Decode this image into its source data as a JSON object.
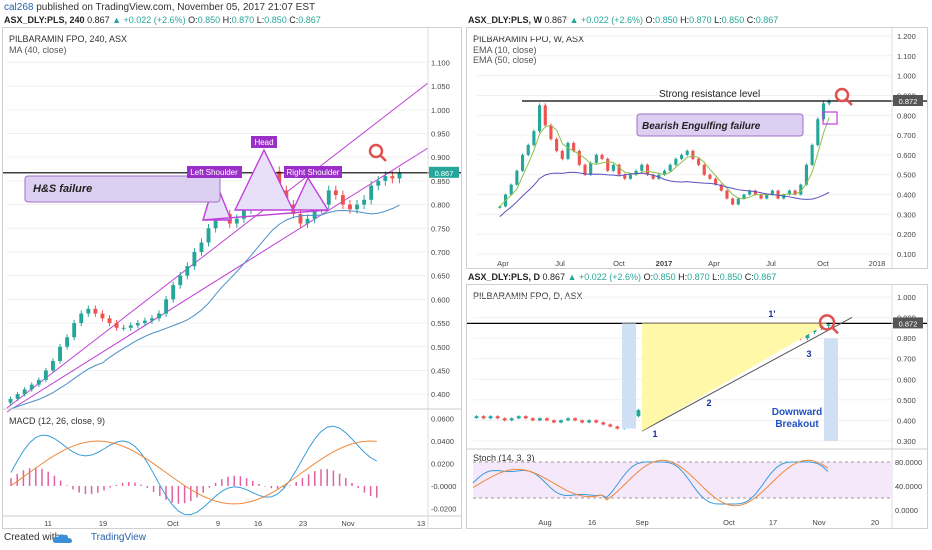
{
  "publisher": {
    "user": "cal268",
    "text": "published on TradingView.com, November 05, 2017 21:07 EST"
  },
  "footer": {
    "created": "Created with",
    "brand": "TradingView"
  },
  "colors": {
    "up": "#26a69a",
    "down": "#ef5350",
    "ma": "#4a90c8",
    "channel": "#c040d8",
    "resistance": "#000000",
    "highlight": "#e8e0f8",
    "red_marker": "#e05050",
    "macd": "#3a9bd8",
    "signal": "#f0883a",
    "hist": "#e060a0"
  },
  "left": {
    "header": {
      "symbol": "ASX_DLY:PLS, 240",
      "price": "0.867",
      "change": "▲ +0.022 (+2.6%)",
      "o_label": "O:",
      "o": "0.850",
      "h_label": "H:",
      "h": "0.870",
      "l_label": "L:",
      "l": "0.850",
      "c_label": "C:",
      "c": "0.867"
    },
    "title": "PILBARAMIN FPO, 240, ASX",
    "indicator": "MA (40, close)",
    "labels": {
      "hs_failure": "H&S failure",
      "left_shoulder": "Left Shoulder",
      "head": "Head",
      "right_shoulder": "Right Shoulder"
    },
    "price_tag": "0.867",
    "macd_title": "MACD (12, 26, close, 9)",
    "chart_data": {
      "type": "candlestick",
      "title": "PILBARAMIN FPO, 240, ASX",
      "yticks": [
        "1.100",
        "1.050",
        "1.000",
        "0.950",
        "0.900",
        "0.850",
        "0.800",
        "0.750",
        "0.700",
        "0.650",
        "0.600",
        "0.550",
        "0.500",
        "0.450",
        "0.400"
      ],
      "ylim": [
        0.375,
        1.105
      ],
      "xticks": [
        "11",
        "19",
        "Oct",
        "9",
        "16",
        "23",
        "Nov",
        "13"
      ],
      "close": [
        0.39,
        0.4,
        0.41,
        0.42,
        0.43,
        0.45,
        0.47,
        0.5,
        0.52,
        0.55,
        0.57,
        0.58,
        0.57,
        0.56,
        0.55,
        0.54,
        0.54,
        0.545,
        0.55,
        0.555,
        0.56,
        0.57,
        0.6,
        0.63,
        0.65,
        0.67,
        0.7,
        0.72,
        0.75,
        0.8,
        0.78,
        0.76,
        0.77,
        0.79,
        0.8,
        0.82,
        0.85,
        0.87,
        0.83,
        0.8,
        0.78,
        0.76,
        0.77,
        0.79,
        0.8,
        0.83,
        0.82,
        0.8,
        0.79,
        0.8,
        0.81,
        0.84,
        0.85,
        0.86,
        0.855,
        0.867
      ],
      "ma_label": "MA (40, close)",
      "resistance": 0.867
    },
    "macd": {
      "yticks": [
        "0.0600",
        "0.0400",
        "0.0200",
        "-0.0000",
        "-0.0200"
      ]
    }
  },
  "right_top": {
    "header": {
      "symbol": "ASX_DLY:PLS, W",
      "price": "0.867",
      "change": "▲ +0.022 (+2.6%)",
      "o_label": "O:",
      "o": "0.850",
      "h_label": "H:",
      "h": "0.870",
      "l_label": "L:",
      "l": "0.850",
      "c_label": "C:",
      "c": "0.867"
    },
    "title": "PILBARAMIN FPO, W, ASX",
    "ema10": "EMA (10, close)",
    "ema50": "EMA (50, close)",
    "labels": {
      "resistance": "Strong resistance level",
      "bearish": "Bearish Engulfing failure"
    },
    "price_tag": "0.872",
    "chart_data": {
      "type": "candlestick",
      "title": "PILBARAMIN FPO, W, ASX",
      "yticks": [
        "1.200",
        "1.100",
        "1.000",
        "0.900",
        "0.800",
        "0.700",
        "0.600",
        "0.500",
        "0.400",
        "0.300",
        "0.200",
        "0.100"
      ],
      "ylim": [
        0.08,
        1.21
      ],
      "xticks": [
        "Apr",
        "Jul",
        "Oct",
        "2017",
        "Apr",
        "Jul",
        "Oct",
        "2018"
      ],
      "close": [
        0.34,
        0.4,
        0.45,
        0.52,
        0.6,
        0.65,
        0.72,
        0.85,
        0.75,
        0.68,
        0.62,
        0.58,
        0.66,
        0.62,
        0.55,
        0.5,
        0.56,
        0.6,
        0.58,
        0.52,
        0.55,
        0.5,
        0.48,
        0.5,
        0.52,
        0.55,
        0.5,
        0.48,
        0.5,
        0.52,
        0.55,
        0.58,
        0.6,
        0.62,
        0.58,
        0.55,
        0.5,
        0.48,
        0.45,
        0.42,
        0.38,
        0.35,
        0.38,
        0.4,
        0.42,
        0.4,
        0.38,
        0.4,
        0.42,
        0.38,
        0.4,
        0.42,
        0.4,
        0.45,
        0.55,
        0.65,
        0.78,
        0.86,
        0.87
      ],
      "resistance": 0.872
    }
  },
  "right_bot": {
    "header": {
      "symbol": "ASX_DLY:PLS, D",
      "price": "0.867",
      "change": "▲ +0.022 (+2.6%)",
      "o_label": "O:",
      "o": "0.850",
      "h_label": "H:",
      "h": "0.870",
      "l_label": "L:",
      "l": "0.850",
      "c_label": "C:",
      "c": "0.867"
    },
    "title": "PILBARAMIN FPO, D, ASX",
    "labels": {
      "p1": "1",
      "p1prime": "1'",
      "p2": "2",
      "p3": "3",
      "downward": "Downward",
      "breakout": "Breakout"
    },
    "price_tag": "0.872",
    "stoch_title": "Stoch (14, 3, 3)",
    "chart_data": {
      "type": "candlestick",
      "title": "PILBARAMIN FPO, D, ASX",
      "yticks": [
        "1.000",
        "0.900",
        "0.800",
        "0.700",
        "0.600",
        "0.500",
        "0.400",
        "0.300"
      ],
      "ylim": [
        0.28,
        1.02
      ],
      "xticks": [
        "Aug",
        "16",
        "Sep",
        "Oct",
        "17",
        "Nov",
        "20"
      ],
      "close": [
        0.42,
        0.41,
        0.42,
        0.41,
        0.4,
        0.41,
        0.42,
        0.41,
        0.4,
        0.41,
        0.4,
        0.39,
        0.4,
        0.41,
        0.4,
        0.39,
        0.4,
        0.39,
        0.38,
        0.37,
        0.36,
        0.38,
        0.42,
        0.45,
        0.48,
        0.5,
        0.52,
        0.55,
        0.54,
        0.58,
        0.6,
        0.62,
        0.64,
        0.66,
        0.7,
        0.74,
        0.78,
        0.8,
        0.83,
        0.85,
        0.84,
        0.82,
        0.8,
        0.79,
        0.81,
        0.82,
        0.8,
        0.83,
        0.85,
        0.86,
        0.867
      ],
      "resistance": 0.872
    },
    "stoch": {
      "yticks": [
        "80.0000",
        "40.0000",
        "0.0000"
      ]
    }
  }
}
